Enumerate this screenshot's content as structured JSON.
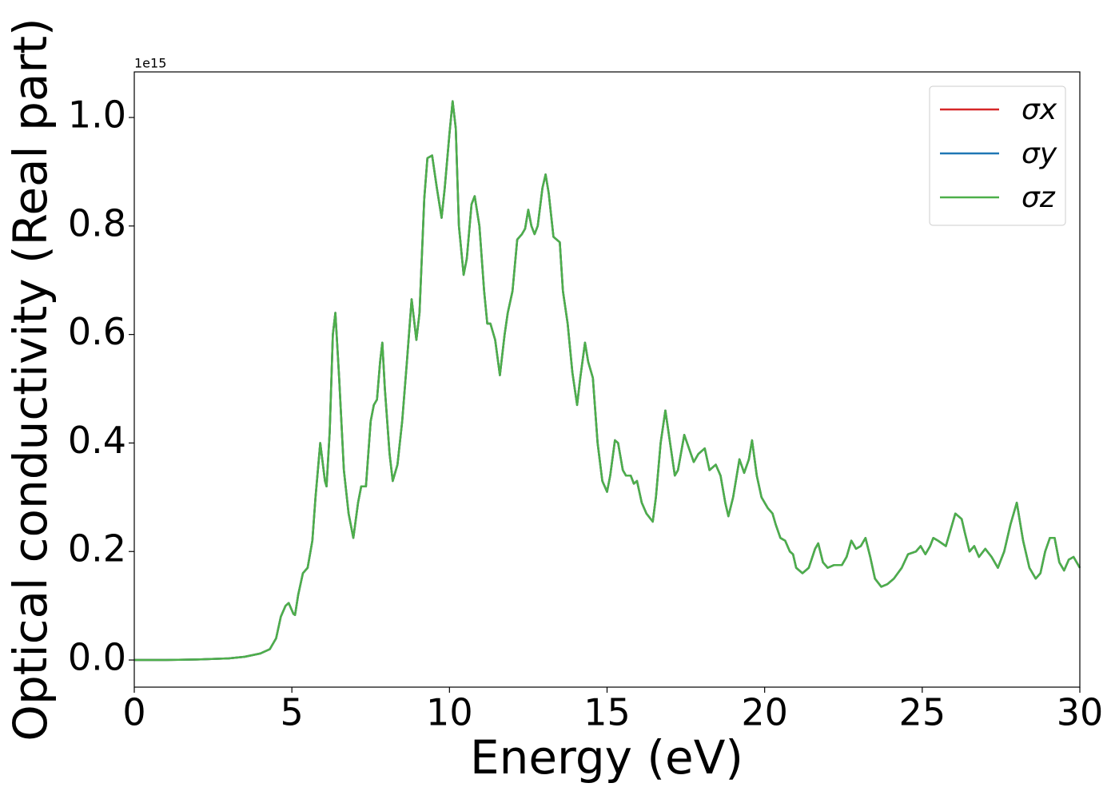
{
  "chart_data": {
    "type": "line",
    "x_label": "Energy (eV)",
    "y_label": "Optical conductivity (Real part)",
    "y_offset_label": "1e15",
    "x": [
      0,
      1,
      2,
      3,
      3.5,
      4,
      4.3,
      4.5,
      4.65,
      4.8,
      4.9,
      5.05,
      5.1,
      5.2,
      5.35,
      5.5,
      5.65,
      5.75,
      5.9,
      6.05,
      6.1,
      6.2,
      6.3,
      6.38,
      6.5,
      6.65,
      6.8,
      6.95,
      7.1,
      7.2,
      7.35,
      7.5,
      7.6,
      7.7,
      7.8,
      7.87,
      7.95,
      8.1,
      8.2,
      8.35,
      8.5,
      8.65,
      8.8,
      8.95,
      9.05,
      9.2,
      9.3,
      9.45,
      9.6,
      9.75,
      9.85,
      10.0,
      10.1,
      10.2,
      10.3,
      10.45,
      10.55,
      10.7,
      10.8,
      10.95,
      11.1,
      11.2,
      11.3,
      11.45,
      11.6,
      11.75,
      11.85,
      12.0,
      12.15,
      12.3,
      12.4,
      12.5,
      12.6,
      12.7,
      12.8,
      12.95,
      13.05,
      13.15,
      13.3,
      13.4,
      13.5,
      13.6,
      13.75,
      13.9,
      14.05,
      14.15,
      14.3,
      14.4,
      14.55,
      14.7,
      14.85,
      15.0,
      15.1,
      15.25,
      15.35,
      15.5,
      15.6,
      15.75,
      15.85,
      15.95,
      16.1,
      16.25,
      16.45,
      16.55,
      16.7,
      16.85,
      17.0,
      17.15,
      17.25,
      17.45,
      17.6,
      17.75,
      17.9,
      18.1,
      18.25,
      18.45,
      18.6,
      18.75,
      18.85,
      19.0,
      19.2,
      19.35,
      19.5,
      19.6,
      19.75,
      19.9,
      20.1,
      20.25,
      20.35,
      20.5,
      20.65,
      20.8,
      20.9,
      21.0,
      21.2,
      21.4,
      21.6,
      21.7,
      21.85,
      22.0,
      22.2,
      22.45,
      22.6,
      22.75,
      22.9,
      23.05,
      23.2,
      23.35,
      23.5,
      23.7,
      23.9,
      24.1,
      24.35,
      24.55,
      24.8,
      24.95,
      25.1,
      25.25,
      25.35,
      25.5,
      25.75,
      25.9,
      26.05,
      26.25,
      26.35,
      26.5,
      26.65,
      26.8,
      27.0,
      27.2,
      27.4,
      27.6,
      27.8,
      28.0,
      28.2,
      28.4,
      28.6,
      28.75,
      28.9,
      29.05,
      29.2,
      29.35,
      29.5,
      29.65,
      29.8,
      30.0
    ],
    "series": [
      {
        "name": "σx",
        "color": "#d62728",
        "values": [
          0,
          0,
          0.001,
          0.003,
          0.006,
          0.012,
          0.02,
          0.04,
          0.08,
          0.1,
          0.105,
          0.085,
          0.083,
          0.12,
          0.16,
          0.17,
          0.22,
          0.3,
          0.4,
          0.33,
          0.32,
          0.42,
          0.6,
          0.64,
          0.52,
          0.35,
          0.27,
          0.225,
          0.29,
          0.32,
          0.32,
          0.44,
          0.47,
          0.48,
          0.55,
          0.585,
          0.5,
          0.38,
          0.33,
          0.36,
          0.44,
          0.55,
          0.665,
          0.59,
          0.64,
          0.85,
          0.925,
          0.93,
          0.87,
          0.815,
          0.87,
          0.97,
          1.03,
          0.98,
          0.8,
          0.71,
          0.74,
          0.84,
          0.855,
          0.8,
          0.68,
          0.62,
          0.62,
          0.59,
          0.525,
          0.6,
          0.64,
          0.68,
          0.775,
          0.785,
          0.795,
          0.83,
          0.8,
          0.785,
          0.8,
          0.87,
          0.895,
          0.86,
          0.78,
          0.775,
          0.77,
          0.68,
          0.62,
          0.53,
          0.47,
          0.52,
          0.585,
          0.55,
          0.52,
          0.4,
          0.33,
          0.31,
          0.34,
          0.405,
          0.4,
          0.35,
          0.34,
          0.34,
          0.325,
          0.33,
          0.29,
          0.27,
          0.255,
          0.3,
          0.4,
          0.46,
          0.4,
          0.34,
          0.35,
          0.415,
          0.39,
          0.365,
          0.38,
          0.39,
          0.35,
          0.36,
          0.34,
          0.29,
          0.265,
          0.3,
          0.37,
          0.345,
          0.37,
          0.405,
          0.34,
          0.3,
          0.28,
          0.27,
          0.25,
          0.225,
          0.22,
          0.2,
          0.195,
          0.17,
          0.16,
          0.17,
          0.205,
          0.215,
          0.18,
          0.17,
          0.175,
          0.175,
          0.19,
          0.22,
          0.205,
          0.21,
          0.225,
          0.19,
          0.15,
          0.135,
          0.14,
          0.15,
          0.17,
          0.195,
          0.2,
          0.21,
          0.195,
          0.21,
          0.225,
          0.22,
          0.21,
          0.24,
          0.27,
          0.26,
          0.235,
          0.2,
          0.21,
          0.19,
          0.205,
          0.19,
          0.17,
          0.2,
          0.25,
          0.29,
          0.22,
          0.17,
          0.15,
          0.16,
          0.2,
          0.225,
          0.225,
          0.18,
          0.165,
          0.185,
          0.19,
          0.17
        ]
      },
      {
        "name": "σy",
        "color": "#1f77b4",
        "values": [
          0,
          0,
          0.001,
          0.003,
          0.006,
          0.012,
          0.02,
          0.04,
          0.08,
          0.1,
          0.105,
          0.085,
          0.083,
          0.12,
          0.16,
          0.17,
          0.22,
          0.3,
          0.4,
          0.33,
          0.32,
          0.42,
          0.6,
          0.64,
          0.52,
          0.35,
          0.27,
          0.225,
          0.29,
          0.32,
          0.32,
          0.44,
          0.47,
          0.48,
          0.55,
          0.585,
          0.5,
          0.38,
          0.33,
          0.36,
          0.44,
          0.55,
          0.665,
          0.59,
          0.64,
          0.85,
          0.925,
          0.93,
          0.87,
          0.815,
          0.87,
          0.97,
          1.03,
          0.98,
          0.8,
          0.71,
          0.74,
          0.84,
          0.855,
          0.8,
          0.68,
          0.62,
          0.62,
          0.59,
          0.525,
          0.6,
          0.64,
          0.68,
          0.775,
          0.785,
          0.795,
          0.83,
          0.8,
          0.785,
          0.8,
          0.87,
          0.895,
          0.86,
          0.78,
          0.775,
          0.77,
          0.68,
          0.62,
          0.53,
          0.47,
          0.52,
          0.585,
          0.55,
          0.52,
          0.4,
          0.33,
          0.31,
          0.34,
          0.405,
          0.4,
          0.35,
          0.34,
          0.34,
          0.325,
          0.33,
          0.29,
          0.27,
          0.255,
          0.3,
          0.4,
          0.46,
          0.4,
          0.34,
          0.35,
          0.415,
          0.39,
          0.365,
          0.38,
          0.39,
          0.35,
          0.36,
          0.34,
          0.29,
          0.265,
          0.3,
          0.37,
          0.345,
          0.37,
          0.405,
          0.34,
          0.3,
          0.28,
          0.27,
          0.25,
          0.225,
          0.22,
          0.2,
          0.195,
          0.17,
          0.16,
          0.17,
          0.205,
          0.215,
          0.18,
          0.17,
          0.175,
          0.175,
          0.19,
          0.22,
          0.205,
          0.21,
          0.225,
          0.19,
          0.15,
          0.135,
          0.14,
          0.15,
          0.17,
          0.195,
          0.2,
          0.21,
          0.195,
          0.21,
          0.225,
          0.22,
          0.21,
          0.24,
          0.27,
          0.26,
          0.235,
          0.2,
          0.21,
          0.19,
          0.205,
          0.19,
          0.17,
          0.2,
          0.25,
          0.29,
          0.22,
          0.17,
          0.15,
          0.16,
          0.2,
          0.225,
          0.225,
          0.18,
          0.165,
          0.185,
          0.19,
          0.17
        ]
      },
      {
        "name": "σz",
        "color": "#4daf4a",
        "values": [
          0,
          0,
          0.001,
          0.003,
          0.006,
          0.012,
          0.02,
          0.04,
          0.08,
          0.1,
          0.105,
          0.085,
          0.083,
          0.12,
          0.16,
          0.17,
          0.22,
          0.3,
          0.4,
          0.33,
          0.32,
          0.42,
          0.6,
          0.64,
          0.52,
          0.35,
          0.27,
          0.225,
          0.29,
          0.32,
          0.32,
          0.44,
          0.47,
          0.48,
          0.55,
          0.585,
          0.5,
          0.38,
          0.33,
          0.36,
          0.44,
          0.55,
          0.665,
          0.59,
          0.64,
          0.85,
          0.925,
          0.93,
          0.87,
          0.815,
          0.87,
          0.97,
          1.03,
          0.98,
          0.8,
          0.71,
          0.74,
          0.84,
          0.855,
          0.8,
          0.68,
          0.62,
          0.62,
          0.59,
          0.525,
          0.6,
          0.64,
          0.68,
          0.775,
          0.785,
          0.795,
          0.83,
          0.8,
          0.785,
          0.8,
          0.87,
          0.895,
          0.86,
          0.78,
          0.775,
          0.77,
          0.68,
          0.62,
          0.53,
          0.47,
          0.52,
          0.585,
          0.55,
          0.52,
          0.4,
          0.33,
          0.31,
          0.34,
          0.405,
          0.4,
          0.35,
          0.34,
          0.34,
          0.325,
          0.33,
          0.29,
          0.27,
          0.255,
          0.3,
          0.4,
          0.46,
          0.4,
          0.34,
          0.35,
          0.415,
          0.39,
          0.365,
          0.38,
          0.39,
          0.35,
          0.36,
          0.34,
          0.29,
          0.265,
          0.3,
          0.37,
          0.345,
          0.37,
          0.405,
          0.34,
          0.3,
          0.28,
          0.27,
          0.25,
          0.225,
          0.22,
          0.2,
          0.195,
          0.17,
          0.16,
          0.17,
          0.205,
          0.215,
          0.18,
          0.17,
          0.175,
          0.175,
          0.19,
          0.22,
          0.205,
          0.21,
          0.225,
          0.19,
          0.15,
          0.135,
          0.14,
          0.15,
          0.17,
          0.195,
          0.2,
          0.21,
          0.195,
          0.21,
          0.225,
          0.22,
          0.21,
          0.24,
          0.27,
          0.26,
          0.235,
          0.2,
          0.21,
          0.19,
          0.205,
          0.19,
          0.17,
          0.2,
          0.25,
          0.29,
          0.22,
          0.17,
          0.15,
          0.16,
          0.2,
          0.225,
          0.225,
          0.18,
          0.165,
          0.185,
          0.19,
          0.17
        ]
      }
    ],
    "xlim": [
      0,
      30
    ],
    "xticks": [
      0,
      5,
      10,
      15,
      20,
      25,
      30
    ],
    "ylim": [
      -0.05,
      1.084
    ],
    "yticks": [
      {
        "value": 0,
        "label": "0.0"
      },
      {
        "value": 0.2,
        "label": "0.2"
      },
      {
        "value": 0.4,
        "label": "0.4"
      },
      {
        "value": 0.6,
        "label": "0.6"
      },
      {
        "value": 0.8,
        "label": "0.8"
      },
      {
        "value": 1.0,
        "label": "1.0"
      }
    ],
    "grid": false,
    "legend": "upper right"
  }
}
